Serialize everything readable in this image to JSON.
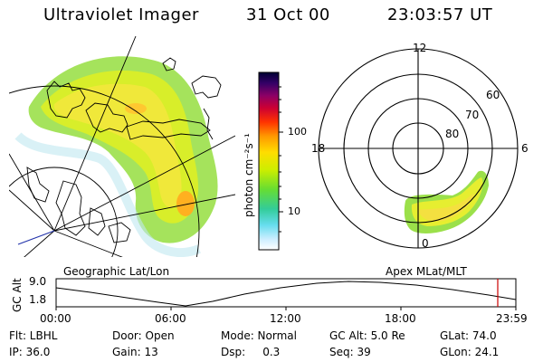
{
  "header": {
    "title": "Ultraviolet Imager",
    "date": "31 Oct 00",
    "time": "23:03:57 UT"
  },
  "colorbar": {
    "label": "photon cm⁻²s⁻¹",
    "ticks": [
      "100",
      "10"
    ],
    "stops": [
      "#000033",
      "#330066",
      "#8b0066",
      "#cc0033",
      "#ff3300",
      "#ff9900",
      "#ffdd00",
      "#ccee00",
      "#66dd33",
      "#33cc99",
      "#66ddee",
      "#cceeff",
      "#ffffff"
    ]
  },
  "geographic_panel": {
    "caption": "Geographic Lat/Lon"
  },
  "polar_panel": {
    "caption": "Apex MLat/MLT",
    "mlt_labels": {
      "top": "12",
      "left": "18",
      "right": "6",
      "bottom": "0"
    },
    "lat_labels": [
      "60",
      "70",
      "80"
    ]
  },
  "timeline": {
    "ylabel": "GC Alt",
    "ytick_top": "9.0",
    "ytick_bottom": "1.8",
    "xticks": [
      "00:00",
      "06:00",
      "12:00",
      "18:00",
      "23:59"
    ],
    "marker_color": "#cc0000"
  },
  "footer": {
    "flt": "Flt: LBHL",
    "ip": "IP: 36.0",
    "door": "Door: Open",
    "gain": "Gain: 13",
    "mode": "Mode: Normal",
    "dsp": "Dsp:     0.3",
    "gcalt": "GC Alt: 5.0 Re",
    "seq": "Seq: 39",
    "glat": "GLat: 74.0",
    "glon": "GLon: 24.1"
  }
}
